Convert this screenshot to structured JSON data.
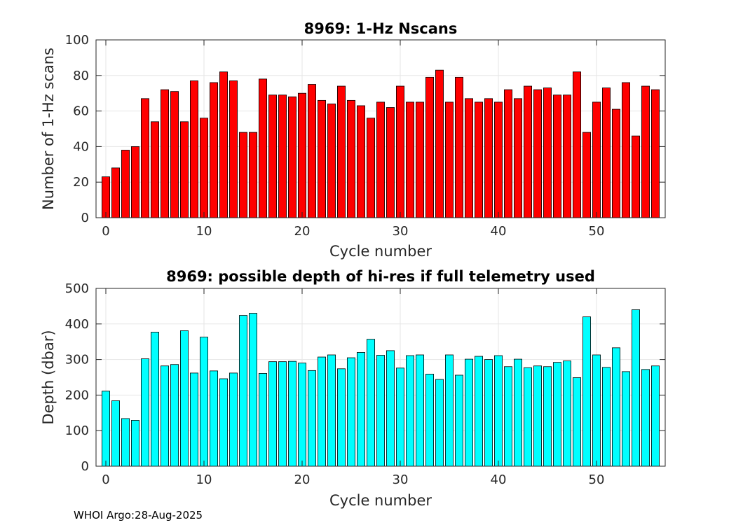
{
  "chart_data": [
    {
      "type": "bar",
      "title": "8969: 1-Hz Nscans",
      "xlabel": "Cycle number",
      "ylabel": "Number of 1-Hz scans",
      "xlim": [
        -1,
        57
      ],
      "ylim": [
        0,
        100
      ],
      "xticks": [
        0,
        10,
        20,
        30,
        40,
        50
      ],
      "yticks": [
        0,
        20,
        40,
        60,
        80,
        100
      ],
      "grid": true,
      "bar_color": "#ff0000",
      "x": [
        0,
        1,
        2,
        3,
        4,
        5,
        6,
        7,
        8,
        9,
        10,
        11,
        12,
        13,
        14,
        15,
        16,
        17,
        18,
        19,
        20,
        21,
        22,
        23,
        24,
        25,
        26,
        27,
        28,
        29,
        30,
        31,
        32,
        33,
        34,
        35,
        36,
        37,
        38,
        39,
        40,
        41,
        42,
        43,
        44,
        45,
        46,
        47,
        48,
        49,
        50,
        51,
        52,
        53,
        54,
        55,
        56
      ],
      "values": [
        23,
        28,
        38,
        40,
        67,
        54,
        72,
        71,
        54,
        77,
        56,
        76,
        82,
        77,
        48,
        48,
        78,
        69,
        69,
        68,
        70,
        75,
        66,
        64,
        74,
        66,
        63,
        56,
        65,
        62,
        74,
        65,
        65,
        79,
        83,
        65,
        79,
        67,
        65,
        67,
        65,
        72,
        67,
        74,
        72,
        73,
        69,
        69,
        82,
        48,
        65,
        73,
        61,
        76,
        46,
        74,
        72
      ]
    },
    {
      "type": "bar",
      "title": "8969: possible depth of hi-res if full telemetry used",
      "xlabel": "Cycle number",
      "ylabel": "Depth (dbar)",
      "xlim": [
        -1,
        57
      ],
      "ylim": [
        0,
        500
      ],
      "xticks": [
        0,
        10,
        20,
        30,
        40,
        50
      ],
      "yticks": [
        0,
        100,
        200,
        300,
        400,
        500
      ],
      "grid": true,
      "bar_color": "#00ffff",
      "x": [
        0,
        1,
        2,
        3,
        4,
        5,
        6,
        7,
        8,
        9,
        10,
        11,
        12,
        13,
        14,
        15,
        16,
        17,
        18,
        19,
        20,
        21,
        22,
        23,
        24,
        25,
        26,
        27,
        28,
        29,
        30,
        31,
        32,
        33,
        34,
        35,
        36,
        37,
        38,
        39,
        40,
        41,
        42,
        43,
        44,
        45,
        46,
        47,
        48,
        49,
        50,
        51,
        52,
        53,
        54,
        55,
        56
      ],
      "values": [
        211,
        184,
        134,
        129,
        302,
        377,
        282,
        286,
        381,
        262,
        363,
        268,
        246,
        262,
        424,
        430,
        261,
        294,
        294,
        295,
        290,
        269,
        307,
        313,
        274,
        305,
        320,
        357,
        312,
        325,
        276,
        311,
        313,
        259,
        244,
        313,
        256,
        301,
        309,
        300,
        311,
        280,
        301,
        277,
        282,
        280,
        292,
        296,
        249,
        420,
        313,
        278,
        333,
        266,
        440,
        272,
        282
      ]
    }
  ],
  "footer": "WHOI Argo:28-Aug-2025"
}
